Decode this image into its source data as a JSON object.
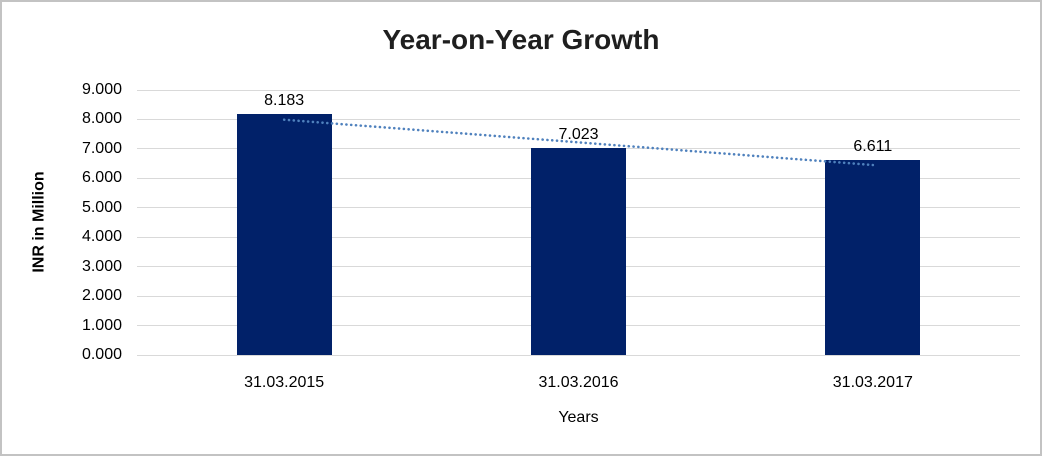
{
  "chart_data": {
    "type": "bar",
    "title": "Year-on-Year Growth",
    "xlabel": "Years",
    "ylabel": "INR in Million",
    "categories": [
      "31.03.2015",
      "31.03.2016",
      "31.03.2017"
    ],
    "series": [
      {
        "name": "INR in Million",
        "values": [
          8.183,
          7.023,
          6.611
        ],
        "value_labels": [
          "8.183",
          "7.023",
          "6.611"
        ]
      }
    ],
    "y_ticks": [
      "0.000",
      "1.000",
      "2.000",
      "3.000",
      "4.000",
      "5.000",
      "6.000",
      "7.000",
      "8.000",
      "9.000"
    ],
    "ylim": [
      0,
      9
    ],
    "grid": "horizontal",
    "legend_position": "none",
    "trendline": {
      "type": "linear",
      "style": "dotted",
      "color": "#4F81BD"
    },
    "colors": {
      "bar": "#012169",
      "gridline": "#D9D9D9",
      "title_text": "#1F1F1F",
      "axis_text": "#000000",
      "chart_border": "#C3C3C3",
      "background": "#FFFFFF"
    }
  }
}
